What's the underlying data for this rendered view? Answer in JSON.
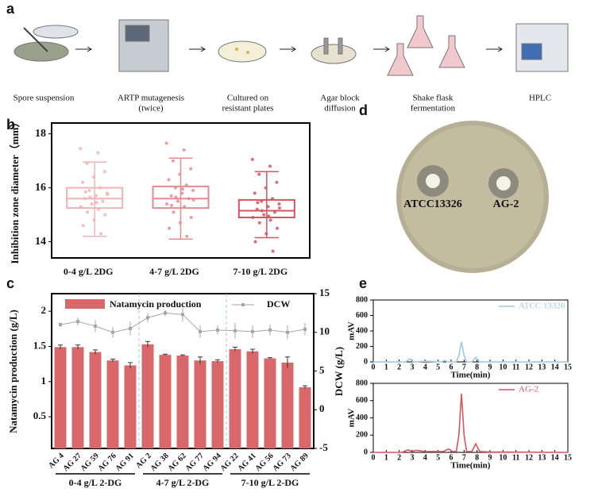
{
  "panel_labels": [
    "a",
    "b",
    "c",
    "d",
    "e"
  ],
  "workflow": {
    "steps": [
      [
        "Spore suspension"
      ],
      [
        "ARTP mutagenesis",
        "(twice)"
      ],
      [
        "Cultured on",
        "resistant plates"
      ],
      [
        "Agar block",
        "diffusion"
      ],
      [
        "Shake flask",
        "fermentation"
      ],
      [
        "HPLC"
      ]
    ]
  },
  "plate": {
    "labels": [
      "ATCC13326",
      "AG-2"
    ]
  },
  "chart_data": [
    {
      "type": "box",
      "ylabel": "Inhibition zone diameter（mm）",
      "categories": [
        "0-4 g/L 2DG",
        "4-7 g/L 2DG",
        "7-10 g/L 2DG"
      ],
      "ylim": [
        13.4,
        18.4
      ],
      "yticks": [
        14,
        16,
        18
      ],
      "boxes": [
        {
          "min": 14.2,
          "q1": 15.25,
          "median": 15.6,
          "q3": 16.0,
          "max": 16.95,
          "color": "#f2b3b5",
          "points": [
            17.45,
            17.3,
            16.9,
            16.6,
            16.4,
            16.2,
            16.0,
            15.9,
            15.8,
            15.7,
            15.6,
            15.5,
            15.4,
            15.3,
            15.2,
            15.1,
            15.0,
            14.8,
            14.6,
            14.3,
            15.65,
            15.75,
            15.45,
            15.85
          ]
        },
        {
          "min": 14.1,
          "q1": 15.25,
          "median": 15.6,
          "q3": 16.05,
          "max": 17.1,
          "color": "#e68c90",
          "points": [
            17.65,
            17.4,
            17.0,
            16.7,
            16.5,
            16.3,
            16.1,
            16.0,
            15.9,
            15.8,
            15.7,
            15.6,
            15.5,
            15.4,
            15.3,
            15.1,
            14.9,
            14.7,
            14.5,
            14.2,
            15.65,
            15.55,
            15.95,
            15.35
          ]
        },
        {
          "min": 14.15,
          "q1": 14.9,
          "median": 15.15,
          "q3": 15.55,
          "max": 16.6,
          "color": "#d65560",
          "points": [
            17.05,
            16.8,
            16.5,
            16.2,
            16.0,
            15.8,
            15.6,
            15.5,
            15.4,
            15.3,
            15.2,
            15.1,
            15.0,
            14.9,
            14.8,
            14.7,
            14.5,
            14.3,
            14.0,
            13.65,
            15.15,
            15.25,
            14.95,
            15.45
          ]
        }
      ]
    },
    {
      "type": "bar_line",
      "ylabel": "Natamycin production (g/L)",
      "y2label": "DCW (g/L)",
      "categories": [
        "AG 4",
        "AG 27",
        "AG 59",
        "AG 76",
        "AG 91",
        "AG 2",
        "AG 38",
        "AG 62",
        "AG 77",
        "AG 94",
        "AG 22",
        "AG 41",
        "AG 56",
        "AG 73",
        "AG 89"
      ],
      "group_labels": [
        "0-4 g/L 2-DG",
        "4-7 g/L 2-DG",
        "7-10 g/L 2-DG"
      ],
      "ylim": [
        0.05,
        2.25
      ],
      "yticks": [
        0.5,
        1.0,
        1.5,
        2.0
      ],
      "y2lim": [
        -5,
        15
      ],
      "y2ticks": [
        -5,
        0,
        5,
        10,
        15
      ],
      "series": [
        {
          "name": "Natamycin production",
          "type": "bar",
          "color": "#d9686b",
          "values": [
            1.49,
            1.49,
            1.42,
            1.3,
            1.23,
            1.53,
            1.38,
            1.37,
            1.3,
            1.29,
            1.46,
            1.43,
            1.33,
            1.27,
            0.92
          ],
          "errors": [
            0.03,
            0.03,
            0.03,
            0.02,
            0.04,
            0.04,
            0.01,
            0.01,
            0.05,
            0.02,
            0.03,
            0.03,
            0.01,
            0.08,
            0.02
          ]
        },
        {
          "name": "DCW",
          "type": "line",
          "axis": "y2",
          "color": "#a6a6a6",
          "values": [
            11.0,
            11.4,
            10.8,
            10.0,
            10.5,
            11.9,
            12.5,
            12.3,
            10.1,
            10.3,
            10.2,
            10.1,
            10.3,
            10.0,
            10.4
          ],
          "errors": [
            0.3,
            0.5,
            0.8,
            0.7,
            0.9,
            0.6,
            0.4,
            0.9,
            0.8,
            0.6,
            1.0,
            0.8,
            0.7,
            0.9,
            0.8
          ]
        }
      ]
    },
    {
      "type": "line",
      "xlabel": "Time(min)",
      "ylabel": "mAV",
      "xlim": [
        0,
        15
      ],
      "ylim": [
        0,
        800
      ],
      "xticks": [
        0,
        1,
        2,
        3,
        4,
        5,
        6,
        7,
        8,
        9,
        10,
        11,
        12,
        13,
        14,
        15
      ],
      "yticks": [
        0,
        200,
        400,
        600,
        800
      ],
      "series": [
        {
          "name": "ATCC 13326",
          "color": "#9cc9e3",
          "x": [
            0,
            2.5,
            2.8,
            3.1,
            4,
            5.3,
            5.5,
            5.7,
            6.4,
            6.6,
            6.8,
            7.0,
            7.2,
            7.6,
            7.9,
            8.2,
            9,
            15
          ],
          "values": [
            0,
            0,
            40,
            0,
            10,
            0,
            20,
            0,
            0,
            80,
            260,
            80,
            0,
            0,
            60,
            0,
            0,
            0
          ]
        }
      ]
    },
    {
      "type": "line",
      "xlabel": "Time(min)",
      "ylabel": "mAV",
      "xlim": [
        0,
        15
      ],
      "ylim": [
        0,
        800
      ],
      "xticks": [
        0,
        1,
        2,
        3,
        4,
        5,
        6,
        7,
        8,
        9,
        10,
        11,
        12,
        13,
        14,
        15
      ],
      "yticks": [
        0,
        200,
        400,
        600,
        800
      ],
      "series": [
        {
          "name": "AG-2",
          "color": "#d9545e",
          "x": [
            0,
            2.2,
            2.7,
            3.0,
            3.3,
            4,
            5.4,
            5.8,
            6.1,
            6.4,
            6.6,
            6.8,
            7.0,
            7.2,
            7.6,
            7.9,
            8.2,
            9,
            15
          ],
          "values": [
            0,
            0,
            30,
            10,
            25,
            10,
            10,
            40,
            10,
            10,
            200,
            680,
            200,
            10,
            10,
            100,
            10,
            5,
            0
          ]
        }
      ]
    }
  ]
}
